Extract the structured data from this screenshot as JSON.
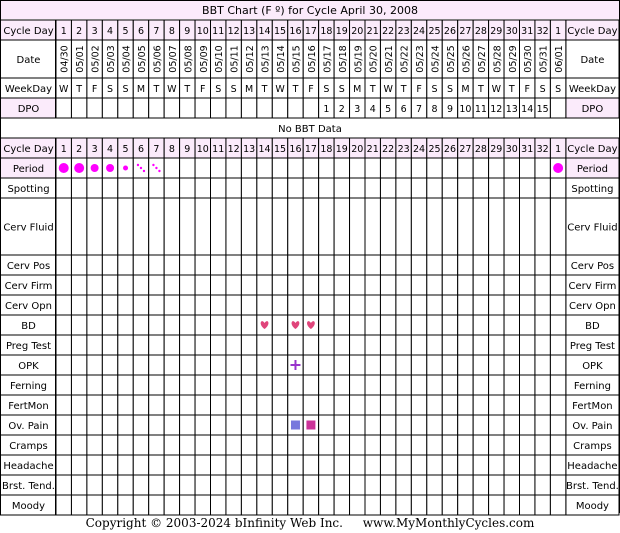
{
  "title": "BBT Chart (F º) for Cycle April 30, 2008",
  "no_data_label": "No BBT Data",
  "footer": {
    "copyright": "Copyright © 2003-2024 bInfinity Web Inc.",
    "site": "www.MyMonthlyCycles.com"
  },
  "colors": {
    "header_bg": "#FBEBFB",
    "grid_line": "#000000",
    "period": "#FF00FF",
    "bd_heart": "#E0457B",
    "opk_plus": "#9933CC",
    "ov_pain_left": "#7777DD",
    "ov_pain_right": "#CC3399"
  },
  "chart_data": {
    "type": "table",
    "title": "BBT Chart (F º) for Cycle April 30, 2008",
    "header_rows": {
      "cycle_day_label": "Cycle Day",
      "date_label": "Date",
      "weekday_label": "WeekDay",
      "dpo_label": "DPO",
      "cycle_days": [
        "1",
        "2",
        "3",
        "4",
        "5",
        "6",
        "7",
        "8",
        "9",
        "10",
        "11",
        "12",
        "13",
        "14",
        "15",
        "16",
        "17",
        "18",
        "19",
        "20",
        "21",
        "22",
        "23",
        "24",
        "25",
        "26",
        "27",
        "28",
        "29",
        "30",
        "31",
        "32",
        "1"
      ],
      "dates": [
        "04/30",
        "05/01",
        "05/02",
        "05/03",
        "05/04",
        "05/05",
        "05/06",
        "05/07",
        "05/08",
        "05/09",
        "05/10",
        "05/11",
        "05/12",
        "05/13",
        "05/14",
        "05/15",
        "05/16",
        "05/17",
        "05/18",
        "05/19",
        "05/20",
        "05/21",
        "05/22",
        "05/23",
        "05/24",
        "05/25",
        "05/26",
        "05/27",
        "05/28",
        "05/29",
        "05/30",
        "05/31",
        "06/01"
      ],
      "weekdays": [
        "W",
        "T",
        "F",
        "S",
        "S",
        "M",
        "T",
        "W",
        "T",
        "F",
        "S",
        "S",
        "M",
        "T",
        "W",
        "T",
        "F",
        "S",
        "S",
        "M",
        "T",
        "W",
        "T",
        "F",
        "S",
        "S",
        "M",
        "T",
        "W",
        "T",
        "F",
        "S",
        "S"
      ],
      "dpo": [
        "",
        "",
        "",
        "",
        "",
        "",
        "",
        "",
        "",
        "",
        "",
        "",
        "",
        "",
        "",
        "",
        "",
        "1",
        "2",
        "3",
        "4",
        "5",
        "6",
        "7",
        "8",
        "9",
        "10",
        "11",
        "12",
        "13",
        "14",
        "15",
        ""
      ]
    },
    "bbt_temperatures": [],
    "rows": [
      {
        "label": "Period",
        "marks": [
          {
            "day_index": 0,
            "symbol": "period",
            "size": "heavy"
          },
          {
            "day_index": 1,
            "symbol": "period",
            "size": "heavy"
          },
          {
            "day_index": 2,
            "symbol": "period",
            "size": "medium"
          },
          {
            "day_index": 3,
            "symbol": "period",
            "size": "medium"
          },
          {
            "day_index": 4,
            "symbol": "period",
            "size": "light"
          },
          {
            "day_index": 5,
            "symbol": "period",
            "size": "spotting"
          },
          {
            "day_index": 6,
            "symbol": "period",
            "size": "spotting"
          },
          {
            "day_index": 32,
            "symbol": "period",
            "size": "heavy"
          }
        ]
      },
      {
        "label": "Spotting",
        "marks": []
      },
      {
        "label": "Cerv Fluid",
        "marks": []
      },
      {
        "label": "Cerv Pos",
        "marks": []
      },
      {
        "label": "Cerv Firm",
        "marks": []
      },
      {
        "label": "Cerv Opn",
        "marks": []
      },
      {
        "label": "BD",
        "marks": [
          {
            "day_index": 13,
            "symbol": "heart"
          },
          {
            "day_index": 15,
            "symbol": "heart"
          },
          {
            "day_index": 16,
            "symbol": "heart"
          }
        ]
      },
      {
        "label": "Preg Test",
        "marks": []
      },
      {
        "label": "OPK",
        "marks": [
          {
            "day_index": 15,
            "symbol": "plus"
          }
        ]
      },
      {
        "label": "Ferning",
        "marks": []
      },
      {
        "label": "FertMon",
        "marks": []
      },
      {
        "label": "Ov. Pain",
        "marks": [
          {
            "day_index": 15,
            "symbol": "square-left"
          },
          {
            "day_index": 16,
            "symbol": "square-right"
          }
        ]
      },
      {
        "label": "Cramps",
        "marks": []
      },
      {
        "label": "Headache",
        "marks": []
      },
      {
        "label": "Brst. Tend.",
        "marks": []
      },
      {
        "label": "Moody",
        "marks": []
      }
    ]
  }
}
